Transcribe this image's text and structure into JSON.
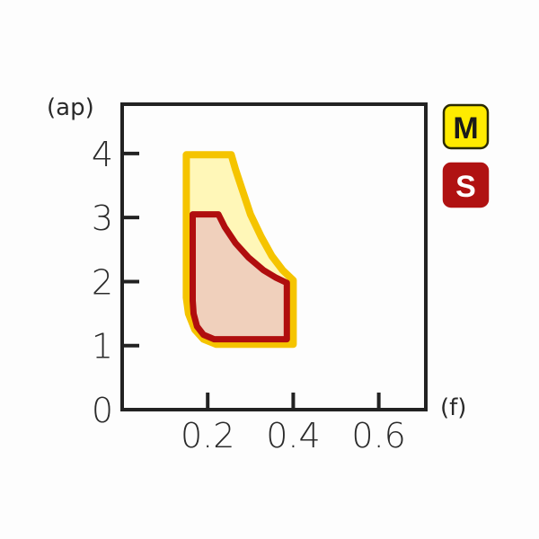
{
  "chart_data": {
    "type": "area",
    "xlabel": "(f)",
    "ylabel": "(ap)",
    "xlim": [
      0,
      0.71
    ],
    "ylim": [
      0,
      4.77
    ],
    "x_ticks": [
      "0.2",
      "0.4",
      "0.6"
    ],
    "x_tick_values": [
      0.2,
      0.4,
      0.6
    ],
    "y_ticks": [
      "0",
      "1",
      "2",
      "3",
      "4"
    ],
    "y_tick_values": [
      0,
      1,
      2,
      3,
      4
    ],
    "grid": false,
    "legend_placement": "right",
    "series": [
      {
        "name": "M",
        "stroke": "#f5c400",
        "fill": "#fff7b8",
        "legend_bg": "#ffeb00",
        "legend_fg": "#1a1a1a",
        "boundary": [
          [
            0.15,
            3.98
          ],
          [
            0.255,
            3.98
          ],
          [
            0.265,
            3.75
          ],
          [
            0.28,
            3.45
          ],
          [
            0.3,
            3.05
          ],
          [
            0.325,
            2.7
          ],
          [
            0.35,
            2.4
          ],
          [
            0.375,
            2.18
          ],
          [
            0.4,
            2.02
          ],
          [
            0.4,
            1.02
          ],
          [
            0.22,
            1.02
          ],
          [
            0.19,
            1.1
          ],
          [
            0.17,
            1.25
          ],
          [
            0.155,
            1.5
          ],
          [
            0.15,
            1.75
          ]
        ]
      },
      {
        "name": "S",
        "stroke": "#b00e0e",
        "fill": "#f0d0bc",
        "legend_bg": "#b01212",
        "legend_fg": "#ffffff",
        "boundary": [
          [
            0.165,
            3.05
          ],
          [
            0.225,
            3.05
          ],
          [
            0.24,
            2.85
          ],
          [
            0.265,
            2.6
          ],
          [
            0.295,
            2.38
          ],
          [
            0.33,
            2.18
          ],
          [
            0.36,
            2.06
          ],
          [
            0.385,
            1.98
          ],
          [
            0.385,
            1.1
          ],
          [
            0.215,
            1.1
          ],
          [
            0.19,
            1.17
          ],
          [
            0.175,
            1.3
          ],
          [
            0.167,
            1.5
          ],
          [
            0.165,
            1.7
          ]
        ]
      }
    ]
  }
}
